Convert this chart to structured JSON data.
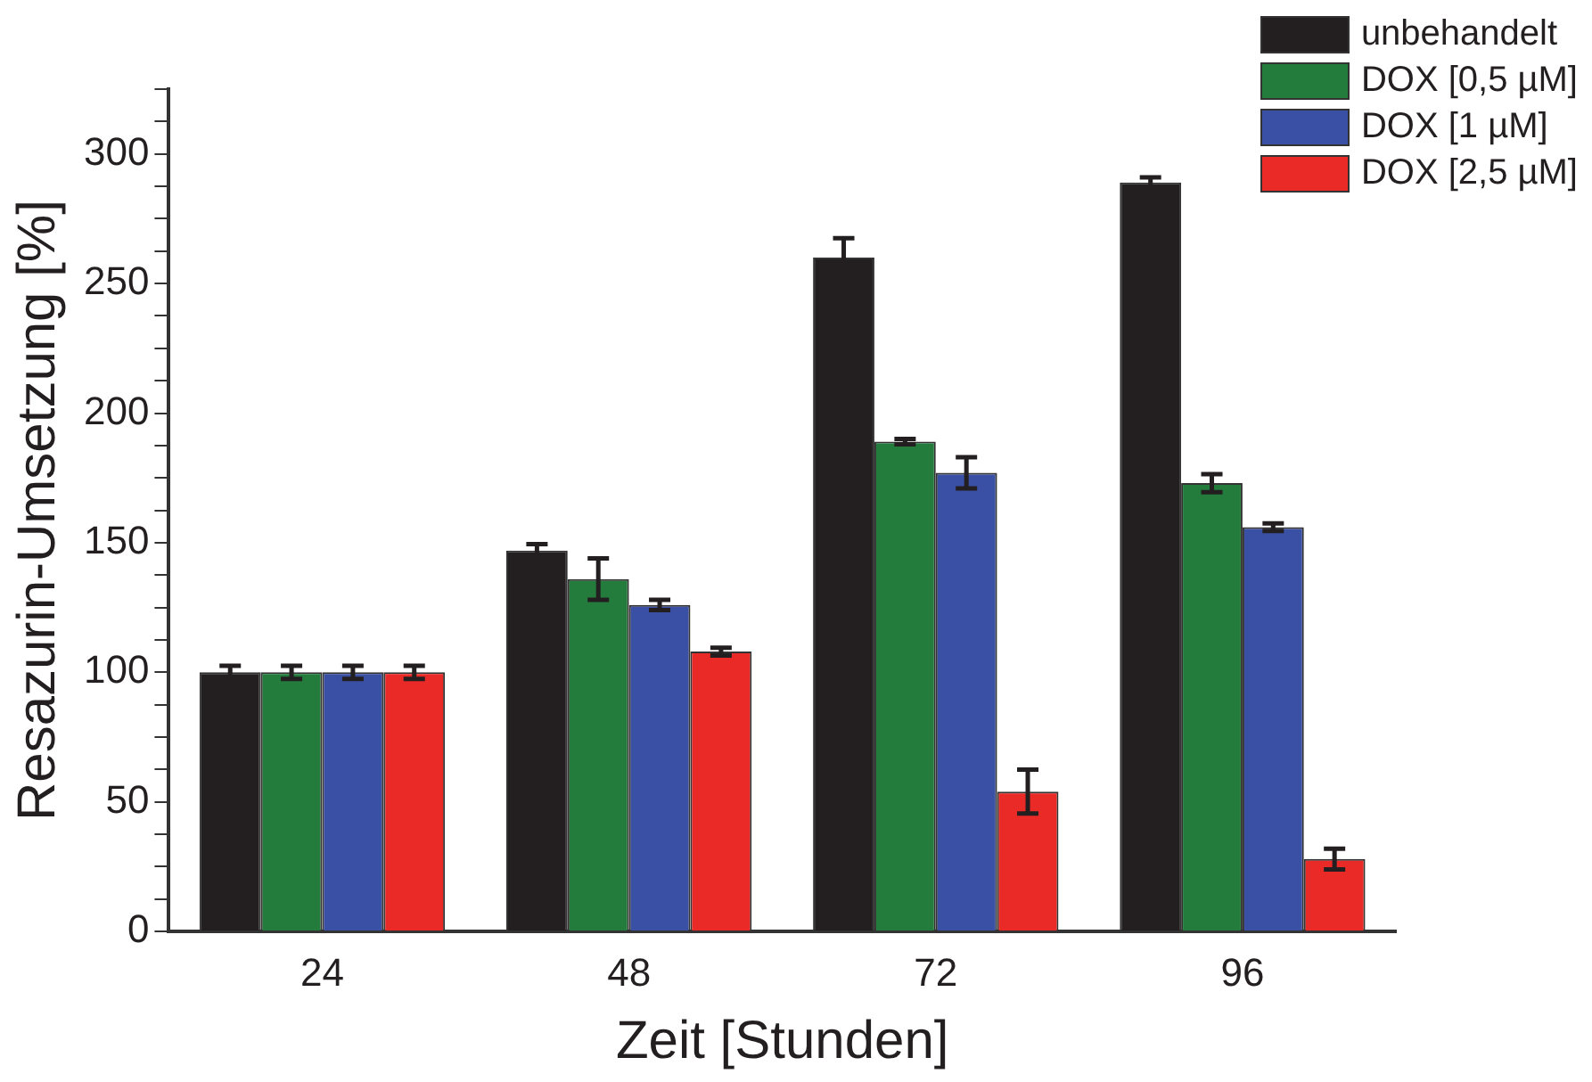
{
  "chart_data": {
    "type": "bar",
    "xlabel": "Zeit [Stunden]",
    "ylabel": "Resazurin-Umsetzung [%]",
    "categories": [
      "24",
      "48",
      "72",
      "96"
    ],
    "series": [
      {
        "name": "unbehandelt",
        "color": "#231f20",
        "values": [
          100,
          147,
          260,
          289
        ],
        "errors": [
          2.5,
          2.5,
          7.5,
          2
        ]
      },
      {
        "name": "DOX [0,5 µM]",
        "color": "#237c3c",
        "values": [
          100,
          136,
          189,
          173
        ],
        "errors": [
          2.5,
          8,
          1,
          3.5
        ]
      },
      {
        "name": "DOX [1 µM]",
        "color": "#3a50a4",
        "values": [
          100,
          126,
          177,
          156
        ],
        "errors": [
          2.5,
          2,
          6,
          1.5
        ]
      },
      {
        "name": "DOX [2,5 µM]",
        "color": "#ea2a27",
        "values": [
          100,
          108,
          54,
          28
        ],
        "errors": [
          2.5,
          1.5,
          8.5,
          4
        ]
      }
    ],
    "ylim": [
      0,
      325
    ],
    "yticks": [
      0,
      {
        "value": 12.5,
        "label": null
      },
      {
        "value": 25,
        "label": null
      },
      {
        "value": 37.5,
        "label": null
      },
      50,
      {
        "value": 62.5,
        "label": null
      },
      {
        "value": 75,
        "label": null
      },
      {
        "value": 87.5,
        "label": null
      },
      100,
      {
        "value": 112.5,
        "label": null
      },
      {
        "value": 125,
        "label": null
      },
      {
        "value": 137.5,
        "label": null
      },
      150,
      {
        "value": 162.5,
        "label": null
      },
      {
        "value": 175,
        "label": null
      },
      {
        "value": 187.5,
        "label": null
      },
      200,
      {
        "value": 212.5,
        "label": null
      },
      {
        "value": 225,
        "label": null
      },
      {
        "value": 237.5,
        "label": null
      },
      250,
      {
        "value": 262.5,
        "label": null
      },
      {
        "value": 275,
        "label": null
      },
      {
        "value": 287.5,
        "label": null
      },
      300,
      {
        "value": 312.5,
        "label": null
      },
      {
        "value": 325,
        "label": null
      }
    ],
    "grid": false,
    "legend": "top right"
  }
}
